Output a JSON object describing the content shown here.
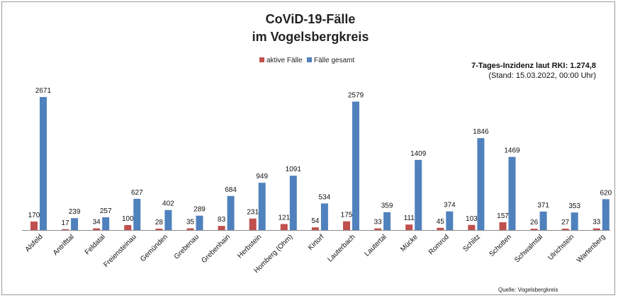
{
  "chart_data": {
    "type": "bar",
    "title": "CoViD-19-Fälle",
    "subtitle": "im Vogelsbergkreis",
    "categories": [
      "Alsfeld",
      "Antrifttal",
      "Feldatal",
      "Freiensteinau",
      "Gemünden",
      "Grebenau",
      "Grebenhain",
      "Herbstein",
      "Homberg (Ohm)",
      "Kirtorf",
      "Lauterbach",
      "Lautertal",
      "Mücke",
      "Romrod",
      "Schlitz",
      "Schotten",
      "Schwalmtal",
      "Ulrichstein",
      "Wartenberg"
    ],
    "series": [
      {
        "name": "aktive Fälle",
        "color": "#c0504d",
        "values": [
          170,
          17,
          34,
          100,
          28,
          35,
          83,
          231,
          121,
          54,
          175,
          33,
          111,
          45,
          103,
          157,
          26,
          27,
          33
        ]
      },
      {
        "name": "Fälle gesamt",
        "color": "#4f81bd",
        "values": [
          2671,
          239,
          257,
          627,
          402,
          289,
          684,
          949,
          1091,
          534,
          2579,
          359,
          1409,
          374,
          1846,
          1469,
          371,
          353,
          620
        ]
      }
    ],
    "ylim": [
      0,
      2700
    ],
    "grid": false,
    "legend_position": "top",
    "note_main": "7-Tages-Inzidenz laut RKI: 1.274,8",
    "note_sub": "(Stand: 15.03.2022, 00:00 Uhr)",
    "source": "Quelle: Vogelsbergkreis"
  }
}
